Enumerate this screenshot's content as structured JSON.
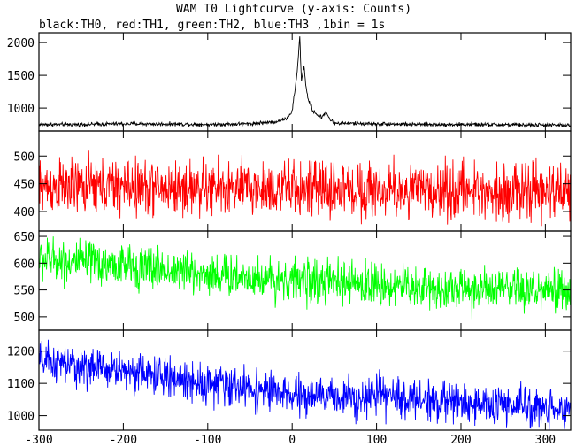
{
  "chart_data": {
    "type": "line",
    "title": "WAM T0 Lightcurve (y-axis: Counts)",
    "subtitle": "black:TH0, red:TH1, green:TH2, blue:TH3 ,1bin = 1s",
    "x_ticks": [
      "-300",
      "-200",
      "-100",
      "0",
      "100",
      "200",
      "300"
    ],
    "x_tick_values": [
      -300,
      -200,
      -100,
      0,
      100,
      200,
      300
    ],
    "xlim": [
      -300,
      330
    ],
    "panels": [
      {
        "name": "TH0",
        "color": "#000000",
        "ylim": [
          650,
          2150
        ],
        "y_ticks": [
          "1000",
          "1500",
          "2000"
        ],
        "y_tick_values": [
          1000,
          1500,
          2000
        ],
        "x": [
          -300,
          -250,
          -200,
          -150,
          -100,
          -50,
          -20,
          -5,
          0,
          3,
          6,
          8,
          9,
          10,
          11,
          12,
          14,
          16,
          18,
          20,
          25,
          30,
          35,
          40,
          45,
          50,
          100,
          150,
          200,
          250,
          300,
          330
        ],
        "values": [
          750,
          750,
          760,
          755,
          750,
          760,
          790,
          850,
          950,
          1250,
          1550,
          1900,
          2100,
          1750,
          1400,
          1500,
          1650,
          1350,
          1200,
          1100,
          950,
          900,
          850,
          950,
          820,
          770,
          760,
          750,
          750,
          745,
          740,
          735
        ],
        "noise": 28
      },
      {
        "name": "TH1",
        "color": "#ff0000",
        "ylim": [
          365,
          545
        ],
        "y_ticks": [
          "400",
          "450",
          "500"
        ],
        "y_tick_values": [
          400,
          450,
          500
        ],
        "x": [
          -300,
          0,
          330
        ],
        "values": [
          445,
          440,
          435
        ],
        "noise": 50
      },
      {
        "name": "TH2",
        "color": "#00ff00",
        "ylim": [
          475,
          660
        ],
        "y_ticks": [
          "500",
          "550",
          "600",
          "650"
        ],
        "y_tick_values": [
          500,
          550,
          600,
          650
        ],
        "x": [
          -300,
          -200,
          -100,
          0,
          100,
          200,
          330
        ],
        "values": [
          608,
          595,
          580,
          568,
          560,
          552,
          545
        ],
        "noise": 40
      },
      {
        "name": "TH3",
        "color": "#0000ff",
        "ylim": [
          955,
          1265
        ],
        "y_ticks": [
          "1000",
          "1100",
          "1200"
        ],
        "y_tick_values": [
          1000,
          1100,
          1200
        ],
        "x": [
          -300,
          -250,
          -200,
          -150,
          -100,
          -50,
          0,
          50,
          100,
          150,
          200,
          250,
          300,
          330
        ],
        "values": [
          1170,
          1150,
          1140,
          1120,
          1100,
          1085,
          1060,
          1060,
          1060,
          1050,
          1040,
          1030,
          1025,
          1020
        ],
        "noise": 60
      }
    ]
  }
}
